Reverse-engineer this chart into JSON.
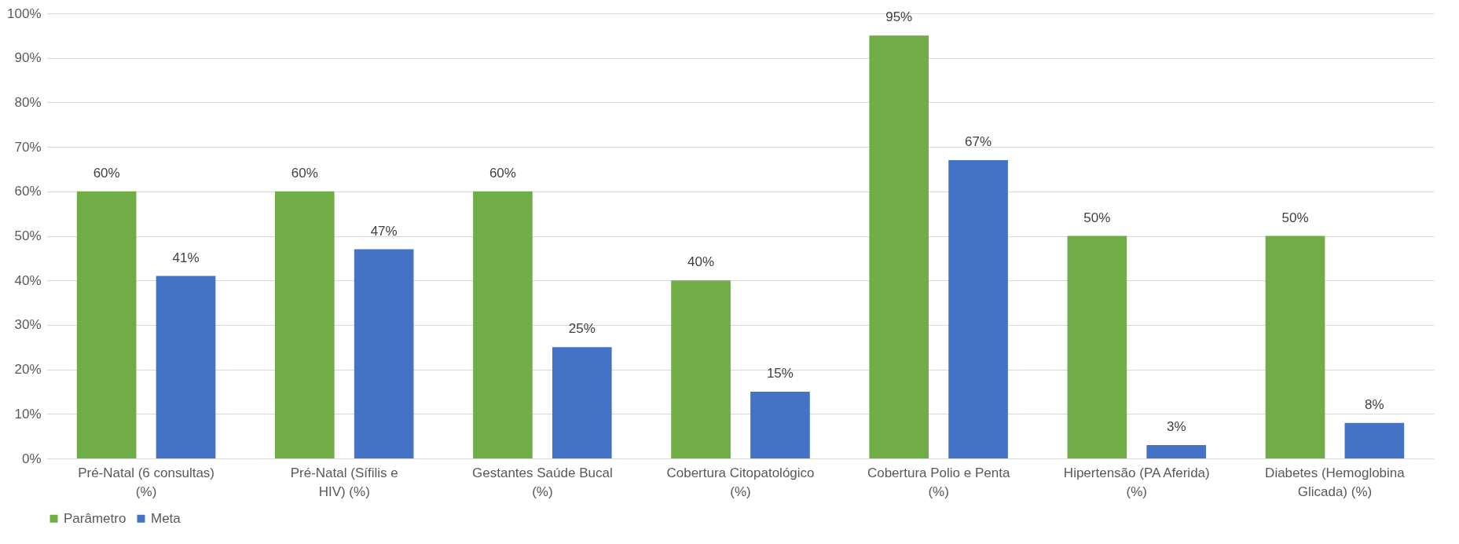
{
  "chart_data": {
    "type": "bar",
    "categories": [
      "Pré-Natal (6 consultas) (%)",
      "Pré-Natal (Sífilis e HIV) (%)",
      "Gestantes Saúde Bucal (%)",
      "Cobertura Citopatológico (%)",
      "Cobertura Polio e Penta (%)",
      "Hipertensão (PA Aferida) (%)",
      "Diabetes (Hemoglobina Glicada) (%)"
    ],
    "series": [
      {
        "name": "Parâmetro",
        "color": "#70ad47",
        "values": [
          60,
          60,
          60,
          40,
          95,
          50,
          50
        ],
        "value_labels": [
          "60%",
          "60%",
          "60%",
          "40%",
          "95%",
          "50%",
          "50%"
        ]
      },
      {
        "name": "Meta",
        "color": "#4472c4",
        "values": [
          41,
          47,
          25,
          15,
          67,
          3,
          8
        ],
        "value_labels": [
          "41%",
          "47%",
          "25%",
          "15%",
          "67%",
          "3%",
          "8%"
        ]
      }
    ],
    "ylim": [
      0,
      100
    ],
    "yticks": [
      {
        "value": 0,
        "label": "0%"
      },
      {
        "value": 10,
        "label": "10%"
      },
      {
        "value": 20,
        "label": "20%"
      },
      {
        "value": 30,
        "label": "30%"
      },
      {
        "value": 40,
        "label": "40%"
      },
      {
        "value": 50,
        "label": "50%"
      },
      {
        "value": 60,
        "label": "60%"
      },
      {
        "value": 70,
        "label": "70%"
      },
      {
        "value": 80,
        "label": "80%"
      },
      {
        "value": 90,
        "label": "90%"
      },
      {
        "value": 100,
        "label": "100%"
      }
    ],
    "grid": true,
    "legend": "bottom"
  }
}
